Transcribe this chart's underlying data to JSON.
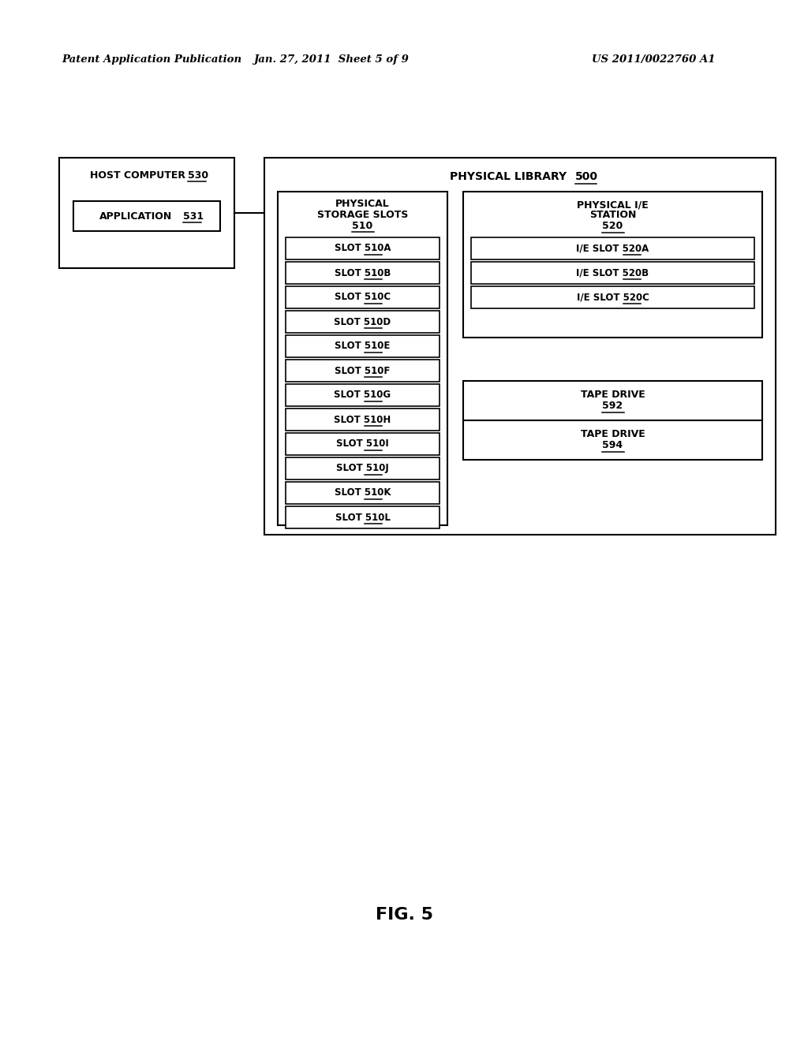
{
  "title_left": "Patent Application Publication",
  "title_mid": "Jan. 27, 2011  Sheet 5 of 9",
  "title_right": "US 2011/0022760 A1",
  "fig_label": "FIG. 5",
  "host_computer_label": "HOST COMPUTER",
  "host_computer_num": "530",
  "application_label": "APPLICATION",
  "application_num": "531",
  "phys_library_label": "PHYSICAL LIBRARY",
  "phys_library_num": "500",
  "phys_storage_label1": "PHYSICAL",
  "phys_storage_label2": "STORAGE SLOTS",
  "phys_storage_num": "510",
  "slots": [
    "SLOT 510A",
    "SLOT 510B",
    "SLOT 510C",
    "SLOT 510D",
    "SLOT 510E",
    "SLOT 510F",
    "SLOT 510G",
    "SLOT 510H",
    "SLOT 510I",
    "SLOT 510J",
    "SLOT 510K",
    "SLOT 510L"
  ],
  "phys_ie_label1": "PHYSICAL I/E",
  "phys_ie_label2": "STATION",
  "phys_ie_num": "520",
  "ie_slots": [
    "I/E SLOT 520A",
    "I/E SLOT 520B",
    "I/E SLOT 520C"
  ],
  "tape_drive1_label": "TAPE DRIVE",
  "tape_drive1_num": "592",
  "tape_drive2_label": "TAPE DRIVE",
  "tape_drive2_num": "594",
  "header_fontsize": 9.5,
  "label_fontsize": 9,
  "slot_fontsize": 8.5,
  "bg_color": "#ffffff",
  "line_color": "#000000"
}
